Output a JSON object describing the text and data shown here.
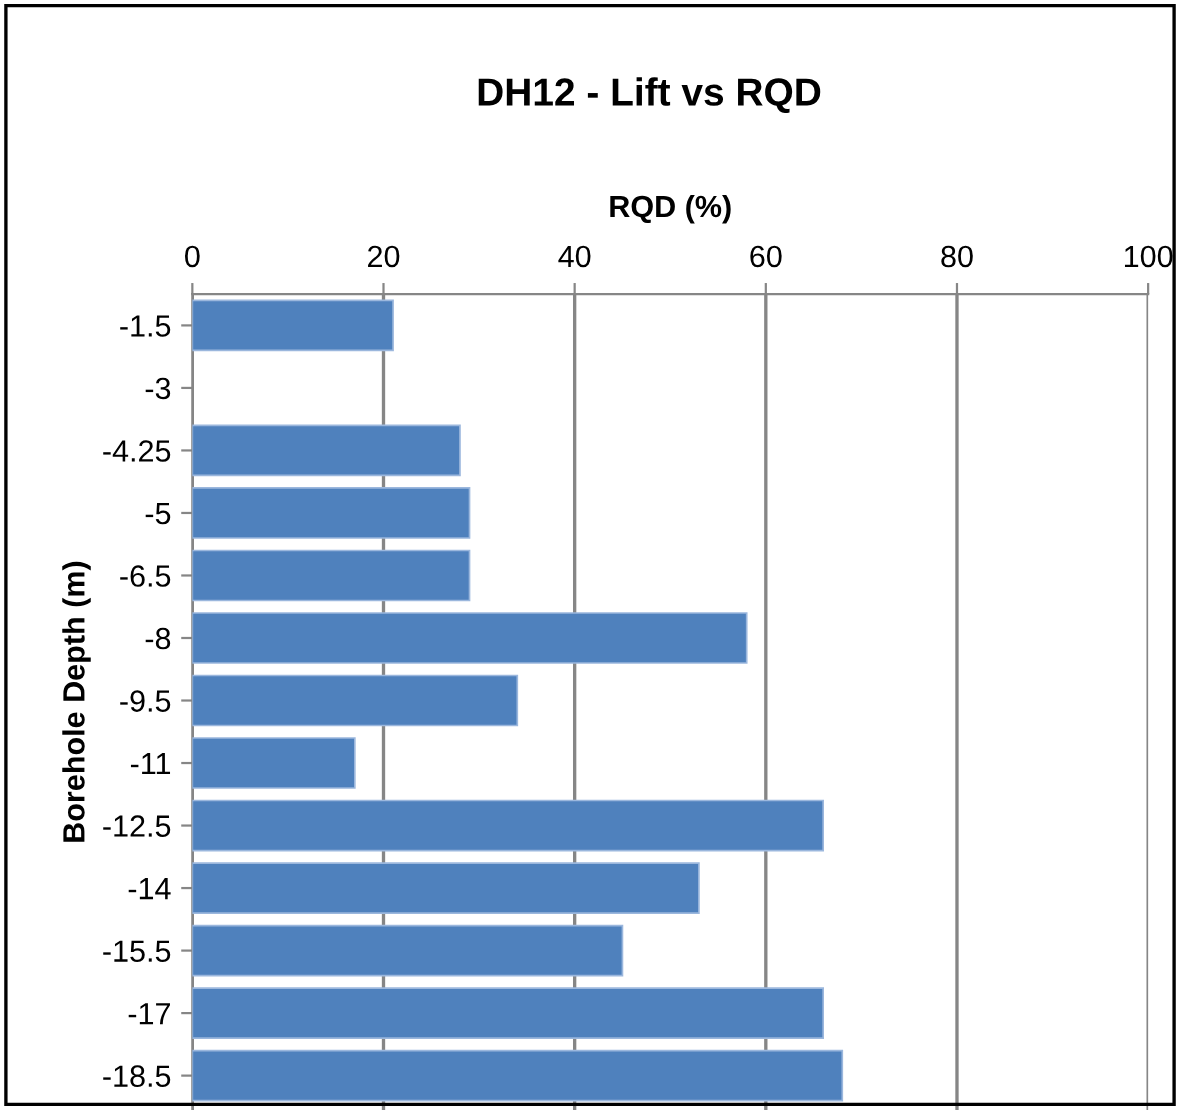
{
  "chart_data": {
    "type": "bar",
    "orientation": "horizontal",
    "title": "DH12 - Lift vs RQD",
    "xlabel": "RQD (%)",
    "ylabel": "Borehole Depth (m)",
    "categories": [
      "-1.5",
      "-3",
      "-4.25",
      "-5",
      "-6.5",
      "-8",
      "-9.5",
      "-11",
      "-12.5",
      "-14",
      "-15.5",
      "-17",
      "-18.5"
    ],
    "values": [
      21,
      null,
      28,
      29,
      29,
      58,
      34,
      17,
      66,
      53,
      45,
      66,
      68
    ],
    "color": "#4f81bd",
    "xlim": [
      0,
      100
    ],
    "xticks": [
      0,
      20,
      40,
      60,
      80,
      100
    ],
    "grid": "x",
    "legend": false
  }
}
